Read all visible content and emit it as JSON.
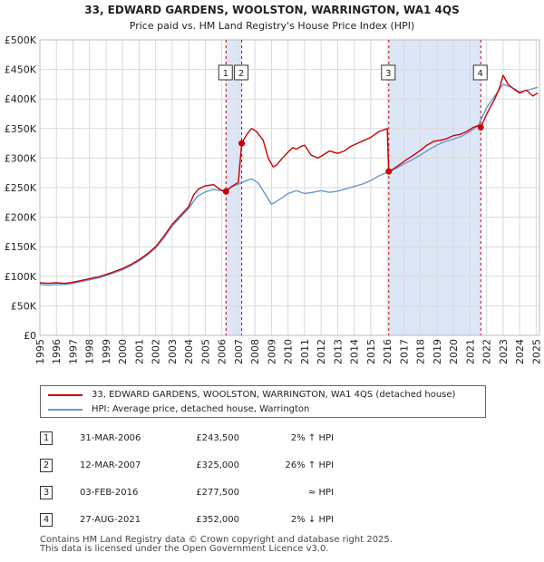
{
  "title": "33, EDWARD GARDENS, WOOLSTON, WARRINGTON, WA1 4QS",
  "subtitle": "Price paid vs. HM Land Registry's House Price Index (HPI)",
  "colors": {
    "property": "#cc0000",
    "hpi": "#6699cc",
    "shade": "#dde6f7",
    "marker_line": "#cc0000"
  },
  "chart_data": {
    "type": "line",
    "title": "33, EDWARD GARDENS, WOOLSTON, WARRINGTON, WA1 4QS",
    "xlabel": "",
    "ylabel": "",
    "xlim": [
      1995,
      2025.2
    ],
    "ylim": [
      0,
      500000
    ],
    "y_ticks": [
      0,
      50000,
      100000,
      150000,
      200000,
      250000,
      300000,
      350000,
      400000,
      450000,
      500000
    ],
    "y_tick_labels": [
      "£0",
      "£50K",
      "£100K",
      "£150K",
      "£200K",
      "£250K",
      "£300K",
      "£350K",
      "£400K",
      "£450K",
      "£500K"
    ],
    "x_ticks": [
      1995,
      1996,
      1997,
      1998,
      1999,
      2000,
      2001,
      2002,
      2003,
      2004,
      2005,
      2006,
      2007,
      2008,
      2009,
      2010,
      2011,
      2012,
      2013,
      2014,
      2015,
      2016,
      2017,
      2018,
      2019,
      2020,
      2021,
      2022,
      2023,
      2024,
      2025
    ],
    "grid": true,
    "shaded_ranges": [
      [
        2006.25,
        2007.2
      ],
      [
        2016.09,
        2021.65
      ]
    ],
    "series": [
      {
        "name": "33, EDWARD GARDENS, WOOLSTON, WARRINGTON, WA1 4QS (detached house)",
        "color": "#cc0000",
        "x": [
          1995,
          1995.5,
          1996,
          1996.5,
          1997,
          1997.5,
          1998,
          1998.5,
          1999,
          1999.5,
          2000,
          2000.5,
          2001,
          2001.5,
          2002,
          2002.5,
          2003,
          2003.5,
          2004,
          2004.3,
          2004.6,
          2005,
          2005.5,
          2006,
          2006.25,
          2006.6,
          2007.0,
          2007.2,
          2007.5,
          2007.8,
          2008.1,
          2008.5,
          2008.8,
          2009.1,
          2009.3,
          2009.6,
          2010,
          2010.3,
          2010.5,
          2010.8,
          2011,
          2011.4,
          2011.8,
          2012,
          2012.5,
          2013,
          2013.4,
          2013.8,
          2014.2,
          2014.6,
          2015,
          2015.5,
          2016.0,
          2016.09,
          2016.4,
          2016.8,
          2017.2,
          2017.6,
          2018,
          2018.4,
          2018.8,
          2019.2,
          2019.6,
          2020,
          2020.4,
          2020.8,
          2021.2,
          2021.5,
          2021.65,
          2021.9,
          2022.2,
          2022.5,
          2022.8,
          2023.0,
          2023.3,
          2023.6,
          2024.0,
          2024.4,
          2024.8,
          2025.1
        ],
        "values": [
          89000,
          88000,
          89000,
          88000,
          90000,
          93000,
          96000,
          99000,
          103000,
          108000,
          113000,
          120000,
          128000,
          138000,
          150000,
          168000,
          188000,
          203000,
          218000,
          238000,
          248000,
          253000,
          255000,
          245000,
          243500,
          252000,
          259000,
          325000,
          340000,
          350000,
          345000,
          330000,
          300000,
          285000,
          288000,
          298000,
          310000,
          318000,
          315000,
          320000,
          322000,
          305000,
          300000,
          303000,
          312000,
          308000,
          312000,
          320000,
          325000,
          330000,
          335000,
          345000,
          350000,
          277500,
          282000,
          290000,
          298000,
          305000,
          313000,
          322000,
          328000,
          330000,
          333000,
          338000,
          340000,
          345000,
          352000,
          355000,
          352000,
          368000,
          385000,
          400000,
          420000,
          440000,
          425000,
          418000,
          410000,
          415000,
          405000,
          410000
        ]
      },
      {
        "name": "HPI: Average price, detached house, Warrington",
        "color": "#6699cc",
        "x": [
          1995,
          1995.5,
          1996,
          1996.5,
          1997,
          1997.5,
          1998,
          1998.5,
          1999,
          1999.5,
          2000,
          2000.5,
          2001,
          2001.5,
          2002,
          2002.5,
          2003,
          2003.5,
          2004,
          2004.5,
          2005,
          2005.5,
          2006,
          2006.5,
          2007,
          2007.5,
          2007.8,
          2008.2,
          2008.6,
          2009.0,
          2009.2,
          2009.6,
          2010,
          2010.5,
          2011,
          2011.5,
          2012,
          2012.5,
          2013,
          2013.5,
          2014,
          2014.5,
          2015,
          2015.5,
          2016,
          2016.5,
          2017,
          2017.5,
          2018,
          2018.5,
          2019,
          2019.5,
          2020,
          2020.5,
          2021,
          2021.5,
          2022,
          2022.5,
          2023,
          2023.5,
          2024,
          2024.5,
          2025.1
        ],
        "values": [
          86000,
          85000,
          86000,
          86000,
          88000,
          91000,
          94000,
          97000,
          101000,
          106000,
          111000,
          118000,
          126000,
          136000,
          148000,
          165000,
          185000,
          200000,
          215000,
          235000,
          243000,
          247000,
          245000,
          250000,
          256000,
          262000,
          265000,
          258000,
          240000,
          222000,
          225000,
          232000,
          240000,
          245000,
          240000,
          242000,
          245000,
          242000,
          244000,
          248000,
          252000,
          256000,
          262000,
          270000,
          276000,
          282000,
          290000,
          297000,
          305000,
          314000,
          322000,
          328000,
          332000,
          337000,
          345000,
          355000,
          385000,
          405000,
          425000,
          420000,
          412000,
          415000,
          420000
        ]
      }
    ],
    "sales": [
      {
        "label": "1",
        "x": 2006.25,
        "value": 243500
      },
      {
        "label": "2",
        "x": 2007.2,
        "value": 325000
      },
      {
        "label": "3",
        "x": 2016.09,
        "value": 277500
      },
      {
        "label": "4",
        "x": 2021.65,
        "value": 352000
      }
    ]
  },
  "legend": {
    "property_label": "33, EDWARD GARDENS, WOOLSTON, WARRINGTON, WA1 4QS (detached house)",
    "hpi_label": "HPI: Average price, detached house, Warrington"
  },
  "sales_table": [
    {
      "num": "1",
      "date": "31-MAR-2006",
      "price": "£243,500",
      "hpi": "2% ↑ HPI"
    },
    {
      "num": "2",
      "date": "12-MAR-2007",
      "price": "£325,000",
      "hpi": "26% ↑ HPI"
    },
    {
      "num": "3",
      "date": "03-FEB-2016",
      "price": "£277,500",
      "hpi": "≈ HPI"
    },
    {
      "num": "4",
      "date": "27-AUG-2021",
      "price": "£352,000",
      "hpi": "2% ↓ HPI"
    }
  ],
  "footer": {
    "line1": "Contains HM Land Registry data © Crown copyright and database right 2025.",
    "line2": "This data is licensed under the Open Government Licence v3.0."
  }
}
